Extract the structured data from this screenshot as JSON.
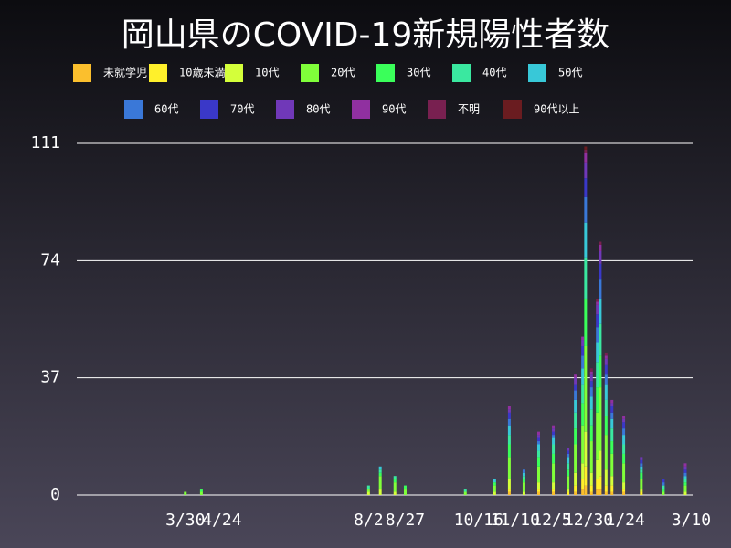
{
  "chart_data": {
    "type": "bar",
    "title": "岡山県のCOVID-19新規陽性者数",
    "stacked": true,
    "x": [
      89,
      100,
      214,
      222,
      232,
      239,
      280,
      300,
      310,
      320,
      330,
      340,
      350,
      355,
      360,
      362,
      366,
      370,
      372,
      376,
      380,
      388,
      400,
      415,
      430
    ],
    "xlim": [
      15,
      435
    ],
    "xticks": [
      {
        "value": 89,
        "label": "3/30"
      },
      {
        "value": 114,
        "label": "4/24"
      },
      {
        "value": 214,
        "label": "8/2"
      },
      {
        "value": 239,
        "label": "8/27"
      },
      {
        "value": 289,
        "label": "10/16"
      },
      {
        "value": 314,
        "label": "11/10"
      },
      {
        "value": 339,
        "label": "12/5"
      },
      {
        "value": 364,
        "label": "12/30"
      },
      {
        "value": 389,
        "label": "1/24"
      },
      {
        "value": 434,
        "label": "3/10"
      }
    ],
    "ylim": [
      0,
      111
    ],
    "yticks": [
      0,
      37,
      74,
      111
    ],
    "grid": true,
    "series": [
      {
        "name": "未就学児",
        "color": "#fbbf2d",
        "values": [
          0,
          0,
          0,
          0,
          0,
          0,
          0,
          0,
          1,
          0,
          1,
          1,
          0,
          1,
          2,
          3,
          1,
          2,
          2,
          1,
          1,
          1,
          0,
          0,
          0
        ]
      },
      {
        "name": "10歳未満",
        "color": "#fff02b",
        "values": [
          0,
          0,
          0,
          0,
          0,
          0,
          0,
          0,
          1,
          0,
          1,
          1,
          1,
          2,
          3,
          6,
          2,
          3,
          4,
          2,
          2,
          1,
          1,
          0,
          0
        ]
      },
      {
        "name": "10代",
        "color": "#d4ff3a",
        "values": [
          0,
          0,
          1,
          2,
          1,
          0,
          0,
          1,
          3,
          1,
          2,
          2,
          1,
          4,
          5,
          11,
          4,
          6,
          8,
          5,
          3,
          2,
          1,
          0,
          1
        ]
      },
      {
        "name": "20代",
        "color": "#80ff3a",
        "values": [
          1,
          1,
          1,
          4,
          3,
          2,
          1,
          2,
          7,
          3,
          5,
          6,
          4,
          9,
          12,
          27,
          10,
          15,
          20,
          11,
          7,
          6,
          3,
          1,
          2
        ]
      },
      {
        "name": "30代",
        "color": "#3aff5a",
        "values": [
          0,
          1,
          0,
          1,
          1,
          1,
          0,
          1,
          4,
          1,
          3,
          3,
          2,
          5,
          7,
          15,
          5,
          8,
          10,
          6,
          4,
          3,
          2,
          1,
          1
        ]
      },
      {
        "name": "40代",
        "color": "#3ae8a0",
        "values": [
          0,
          0,
          1,
          1,
          1,
          0,
          1,
          0,
          3,
          1,
          2,
          3,
          2,
          5,
          6,
          13,
          5,
          8,
          10,
          5,
          4,
          3,
          1,
          1,
          1
        ]
      },
      {
        "name": "50代",
        "color": "#38c8d8",
        "values": [
          0,
          0,
          0,
          1,
          0,
          0,
          0,
          1,
          3,
          1,
          2,
          2,
          2,
          4,
          5,
          11,
          4,
          6,
          8,
          5,
          3,
          3,
          1,
          0,
          1
        ]
      },
      {
        "name": "60代",
        "color": "#3a78d8",
        "values": [
          0,
          0,
          0,
          0,
          0,
          0,
          0,
          0,
          2,
          1,
          1,
          1,
          1,
          3,
          4,
          8,
          3,
          5,
          6,
          3,
          2,
          2,
          1,
          1,
          1
        ]
      },
      {
        "name": "70代",
        "color": "#3a38c8",
        "values": [
          0,
          0,
          0,
          0,
          0,
          0,
          0,
          0,
          2,
          0,
          1,
          1,
          1,
          2,
          3,
          6,
          2,
          4,
          5,
          3,
          2,
          2,
          1,
          1,
          1
        ]
      },
      {
        "name": "80代",
        "color": "#7038b8",
        "values": [
          0,
          0,
          0,
          0,
          0,
          0,
          0,
          0,
          1,
          0,
          1,
          1,
          1,
          2,
          2,
          5,
          2,
          3,
          4,
          2,
          1,
          1,
          1,
          0,
          1
        ]
      },
      {
        "name": "90代",
        "color": "#9030a0",
        "values": [
          0,
          0,
          0,
          0,
          0,
          0,
          0,
          0,
          1,
          0,
          1,
          1,
          0,
          1,
          1,
          3,
          1,
          1,
          2,
          1,
          1,
          1,
          0,
          0,
          1
        ]
      },
      {
        "name": "不明",
        "color": "#782050",
        "values": [
          0,
          0,
          0,
          0,
          0,
          0,
          0,
          0,
          0,
          0,
          0,
          0,
          0,
          0,
          0,
          1,
          1,
          1,
          1,
          1,
          0,
          0,
          0,
          0,
          0
        ]
      },
      {
        "name": "90代以上",
        "color": "#6a1c20",
        "values": [
          0,
          0,
          0,
          0,
          0,
          0,
          0,
          0,
          0,
          0,
          0,
          0,
          0,
          0,
          0,
          1,
          0,
          0,
          0,
          0,
          0,
          0,
          0,
          0,
          0
        ]
      }
    ]
  }
}
